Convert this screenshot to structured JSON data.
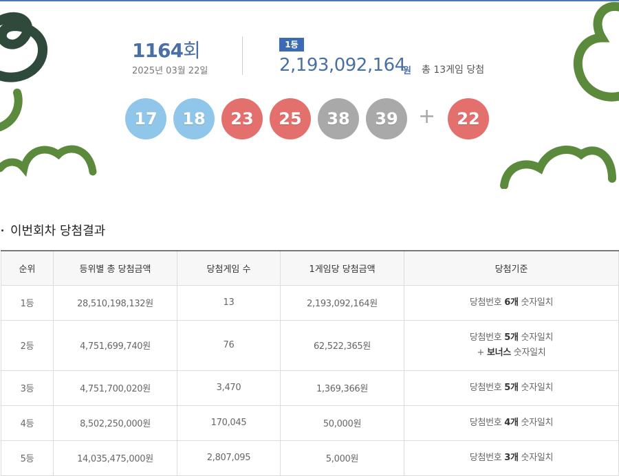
{
  "draw": {
    "number": "1164",
    "suffix": "회",
    "date": "2025년 03월 22일"
  },
  "first_prize": {
    "badge": "1등",
    "amount": "2,193,092,164",
    "unit": "원",
    "games": "총 13게임 당첨"
  },
  "balls": [
    {
      "num": "17",
      "color": "#8fc6ea"
    },
    {
      "num": "18",
      "color": "#8fc6ea"
    },
    {
      "num": "23",
      "color": "#e3706d"
    },
    {
      "num": "25",
      "color": "#e3706d"
    },
    {
      "num": "38",
      "color": "#a9a9a9"
    },
    {
      "num": "39",
      "color": "#a9a9a9"
    }
  ],
  "plus": "+",
  "bonus": {
    "num": "22",
    "color": "#e3706d"
  },
  "section_title": "이번회차 당첨결과",
  "table": {
    "headers": [
      "순위",
      "등위별 총 당첨금액",
      "당첨게임 수",
      "1게임당 당첨금액",
      "당첨기준"
    ],
    "rows": [
      {
        "rank": "1등",
        "total": "28,510,198,132원",
        "games": "13",
        "per_game": "2,193,092,164원",
        "crit_pre": "당첨번호 ",
        "crit_bold": "6개",
        "crit_post": " 숫자일치",
        "bonus_line": ""
      },
      {
        "rank": "2등",
        "total": "4,751,699,740원",
        "games": "76",
        "per_game": "62,522,365원",
        "crit_pre": "당첨번호 ",
        "crit_bold": "5개",
        "crit_post": " 숫자일치",
        "bonus_pre": "+ ",
        "bonus_bold": "보너스",
        "bonus_post": " 숫자일치"
      },
      {
        "rank": "3등",
        "total": "4,751,700,020원",
        "games": "3,470",
        "per_game": "1,369,366원",
        "crit_pre": "당첨번호 ",
        "crit_bold": "5개",
        "crit_post": " 숫자일치"
      },
      {
        "rank": "4등",
        "total": "8,502,250,000원",
        "games": "170,045",
        "per_game": "50,000원",
        "crit_pre": "당첨번호 ",
        "crit_bold": "4개",
        "crit_post": " 숫자일치"
      },
      {
        "rank": "5등",
        "total": "14,035,475,000원",
        "games": "2,807,095",
        "per_game": "5,000원",
        "crit_pre": "당첨번호 ",
        "crit_bold": "3개",
        "crit_post": " 숫자일치"
      }
    ]
  },
  "colors": {
    "accent": "#4a6fa5",
    "badge": "#3d6bb3",
    "deco_green": "#5c8a3c",
    "deco_dark": "#2f4a3a"
  }
}
